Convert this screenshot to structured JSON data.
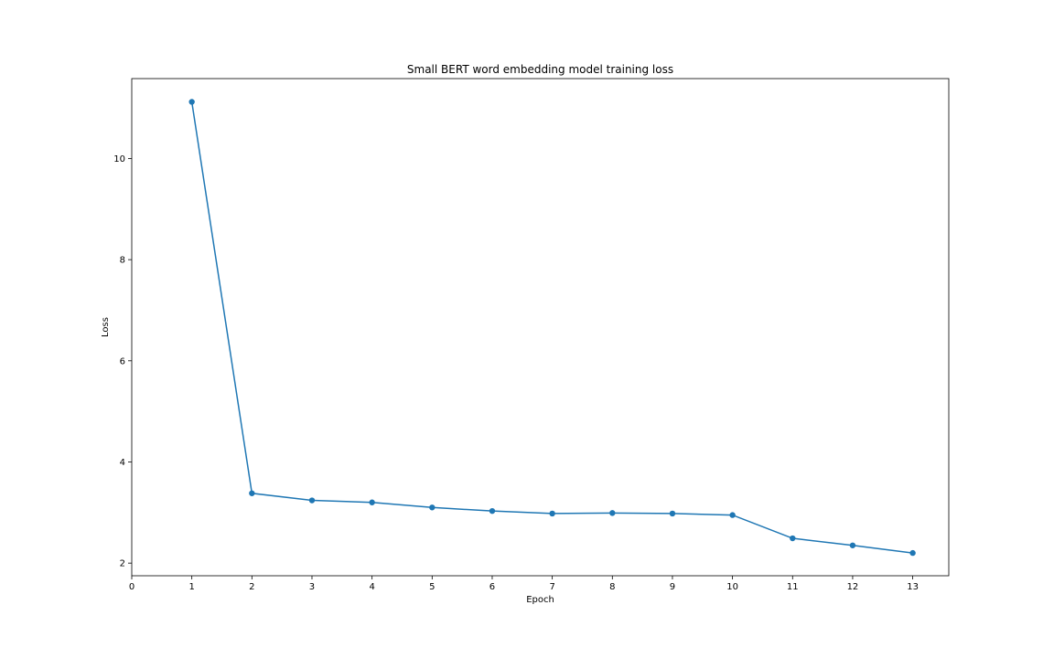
{
  "chart_data": {
    "type": "line",
    "title": "Small BERT word embedding model training loss",
    "xlabel": "Epoch",
    "ylabel": "Loss",
    "x": [
      1,
      2,
      3,
      4,
      5,
      6,
      7,
      8,
      9,
      10,
      11,
      12,
      13
    ],
    "series": [
      {
        "values": [
          11.12,
          3.38,
          3.24,
          3.2,
          3.1,
          3.03,
          2.98,
          2.99,
          2.98,
          2.95,
          2.49,
          2.35,
          2.2
        ],
        "color": "#1f77b4",
        "marker": "circle"
      }
    ],
    "xlim": [
      0,
      13.6
    ],
    "ylim": [
      1.75,
      11.58
    ],
    "xticks": [
      0,
      1,
      2,
      3,
      4,
      5,
      6,
      7,
      8,
      9,
      10,
      11,
      12,
      13
    ],
    "yticks": [
      2,
      4,
      6,
      8,
      10
    ],
    "grid": false,
    "legend": "none"
  }
}
